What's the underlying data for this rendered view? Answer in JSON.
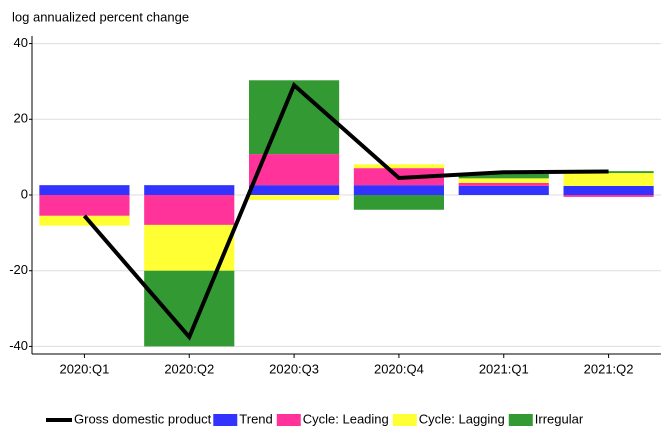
{
  "chart_data": {
    "type": "bar",
    "stacked": true,
    "y_label": "log annualized percent change",
    "categories": [
      "2020:Q1",
      "2020:Q2",
      "2020:Q3",
      "2020:Q4",
      "2021:Q1",
      "2021:Q2"
    ],
    "series": [
      {
        "name": "Trend",
        "color": "#3333ff",
        "values": [
          2.6,
          2.6,
          2.6,
          2.6,
          2.4,
          2.4
        ]
      },
      {
        "name": "Cycle: Leading",
        "color": "#ff3399",
        "values": [
          -5.5,
          -7.9,
          8.2,
          4.5,
          0.8,
          -0.5
        ]
      },
      {
        "name": "Cycle: Lagging",
        "color": "#ffff33",
        "values": [
          -2.6,
          -12.1,
          -1.3,
          1,
          1.2,
          3.4
        ]
      },
      {
        "name": "Irregular",
        "color": "#339933",
        "values": [
          0,
          -20,
          19.5,
          -3.9,
          1.2,
          0.5
        ]
      }
    ],
    "line": {
      "name": "Gross domestic product",
      "color": "#000000",
      "values": [
        -5.5,
        -37.5,
        29,
        4.5,
        6,
        6.2
      ]
    },
    "ylim": [
      -42,
      42
    ],
    "yticks": [
      -40,
      -20,
      0,
      20,
      40
    ],
    "grid": true,
    "legend": "bottom"
  }
}
